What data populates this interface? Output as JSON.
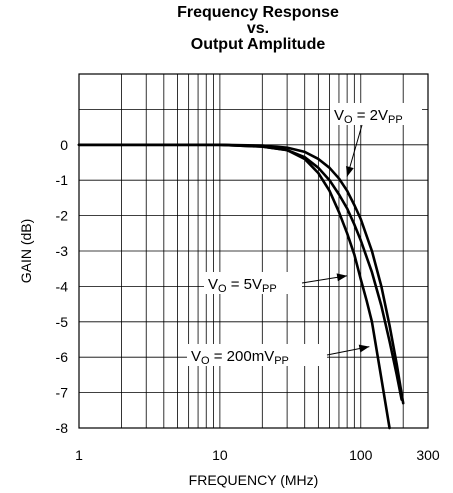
{
  "chart_data": {
    "type": "line",
    "title_lines": [
      "Frequency Response",
      "vs.",
      "Output Amplitude"
    ],
    "xlabel": "FREQUENCY (MHz)",
    "ylabel": "GAIN (dB)",
    "x_scale": "log",
    "xlim": [
      1,
      300
    ],
    "ylim": [
      -8,
      2
    ],
    "x_tick_labels": [
      {
        "value": 1,
        "label": "1"
      },
      {
        "value": 10,
        "label": "10"
      },
      {
        "value": 100,
        "label": "100"
      },
      {
        "value": 300,
        "label": "300"
      }
    ],
    "y_tick_labels": [
      {
        "value": 0,
        "label": "0"
      },
      {
        "value": -1,
        "label": "-1"
      },
      {
        "value": -2,
        "label": "-2"
      },
      {
        "value": -3,
        "label": "-3"
      },
      {
        "value": -4,
        "label": "-4"
      },
      {
        "value": -5,
        "label": "-5"
      },
      {
        "value": -6,
        "label": "-6"
      },
      {
        "value": -7,
        "label": "-7"
      },
      {
        "value": -8,
        "label": "-8"
      }
    ],
    "grid": true,
    "series": [
      {
        "x": [
          1,
          5,
          10,
          20,
          30,
          40,
          50,
          60,
          70,
          80,
          90,
          100,
          120,
          140,
          160,
          180,
          200
        ],
        "y": [
          0,
          0,
          0,
          -0.02,
          -0.08,
          -0.2,
          -0.4,
          -0.65,
          -0.95,
          -1.3,
          -1.7,
          -2.1,
          -3.0,
          -4.0,
          -5.1,
          -6.2,
          -7.3
        ]
      },
      {
        "x": [
          1,
          5,
          10,
          20,
          30,
          40,
          50,
          60,
          70,
          80,
          90,
          100,
          120,
          140,
          160,
          180,
          195
        ],
        "y": [
          0,
          0,
          0,
          -0.05,
          -0.15,
          -0.35,
          -0.65,
          -1.0,
          -1.4,
          -1.8,
          -2.25,
          -2.7,
          -3.6,
          -4.55,
          -5.55,
          -6.5,
          -7.2
        ]
      },
      {
        "x": [
          1,
          5,
          10,
          20,
          30,
          40,
          50,
          60,
          70,
          80,
          90,
          100,
          110,
          120,
          140,
          160
        ],
        "y": [
          0,
          0,
          0,
          -0.05,
          -0.15,
          -0.4,
          -0.8,
          -1.3,
          -1.9,
          -2.5,
          -3.1,
          -3.8,
          -4.4,
          -5.0,
          -6.6,
          -8.0
        ]
      }
    ],
    "annotations": [
      {
        "main": "V",
        "sub_o": "O",
        "rest": " = 2V",
        "sub_pp": "PP",
        "arrow_to": {
          "x": 80,
          "y": -0.9
        }
      },
      {
        "main": "V",
        "sub_o": "O",
        "rest": " = 5V",
        "sub_pp": "PP",
        "arrow_to": {
          "x": 80,
          "y": -3.7
        }
      },
      {
        "main": "V",
        "sub_o": "O",
        "rest": " = 200mV",
        "sub_pp": "PP",
        "arrow_to": {
          "x": 115,
          "y": -5.7
        }
      }
    ]
  }
}
